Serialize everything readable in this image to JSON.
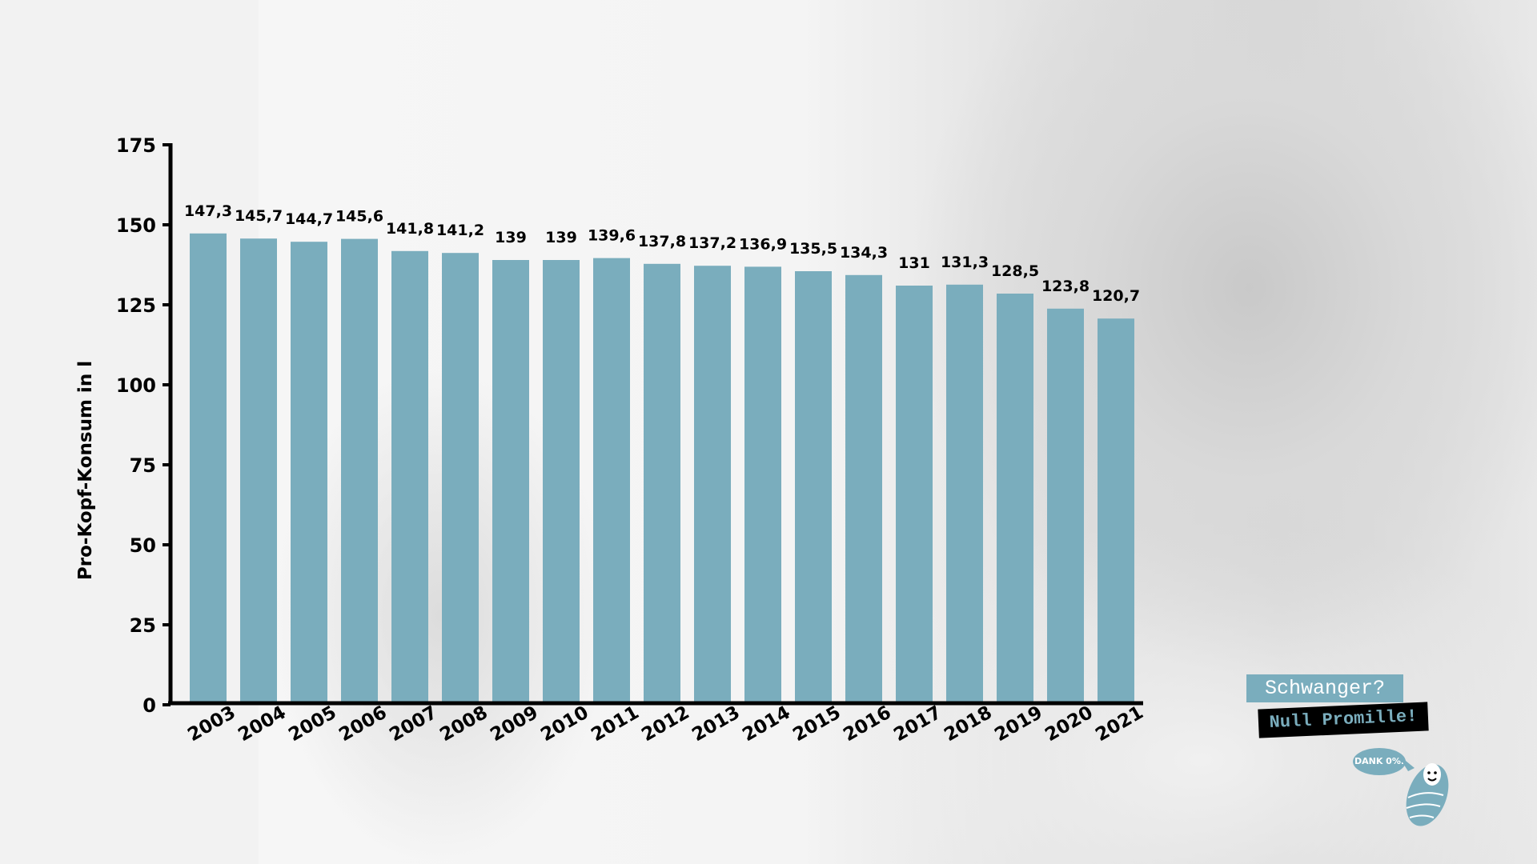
{
  "chart_data": {
    "type": "bar",
    "title": "",
    "xlabel": "",
    "ylabel": "Pro-Kopf-Konsum in l",
    "ylim": [
      0,
      175
    ],
    "yticks": [
      "0",
      "25",
      "50",
      "75",
      "100",
      "125",
      "150",
      "175"
    ],
    "grid": false,
    "categories": [
      "2003",
      "2004",
      "2005",
      "2006",
      "2007",
      "2008",
      "2009",
      "2010",
      "2011",
      "2012",
      "2013",
      "2014",
      "2015",
      "2016",
      "2017",
      "2018",
      "2019",
      "2020",
      "2021"
    ],
    "values": [
      147.3,
      145.7,
      144.7,
      145.6,
      141.8,
      141.2,
      139,
      139,
      139.6,
      137.8,
      137.2,
      136.9,
      135.5,
      134.3,
      131,
      131.3,
      128.5,
      123.8,
      120.7
    ],
    "data_labels": [
      "147,3",
      "145,7",
      "144,7",
      "145,6",
      "141,8",
      "141,2",
      "139",
      "139",
      "139,6",
      "137,8",
      "137,2",
      "136,9",
      "135,5",
      "134,3",
      "131",
      "131,3",
      "128,5",
      "123,8",
      "120,7"
    ],
    "bar_color": "#7aadbd"
  },
  "logo": {
    "line1": "Schwanger?",
    "line2": "Null Promille!",
    "bubble": "DANK 0%."
  }
}
